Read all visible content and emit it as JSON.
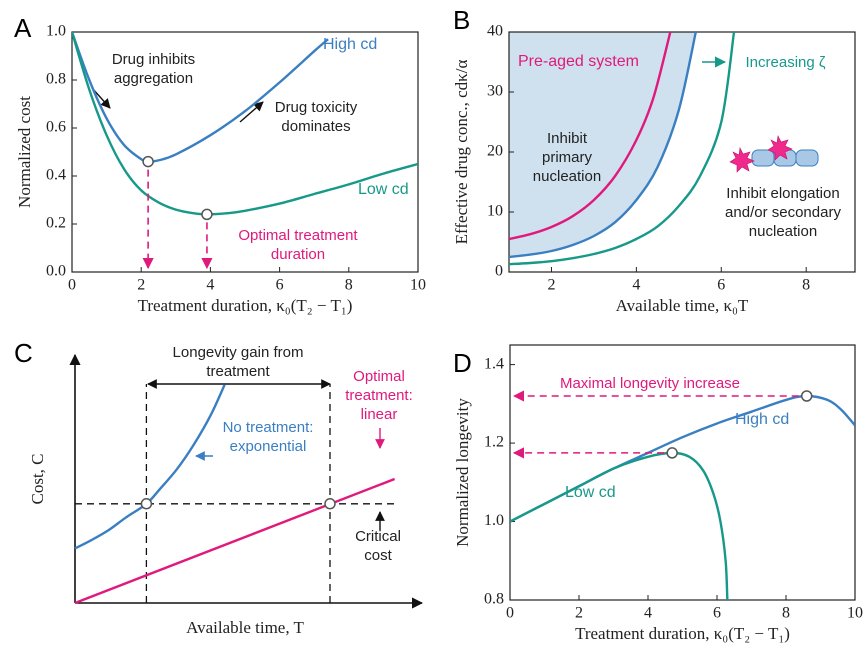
{
  "chart_data": [
    {
      "type": "line",
      "panel": "A",
      "xlabel": "Treatment duration, κ₀(T₂ − T₁)",
      "ylabel": "Normalized cost",
      "xlim": [
        0,
        10
      ],
      "ylim": [
        0,
        1
      ],
      "xticks": [
        0,
        2,
        4,
        6,
        8,
        10
      ],
      "yticks": [
        {
          "value": 0,
          "label": "0.0"
        },
        0.2,
        0.4,
        0.6,
        0.8,
        {
          "value": 1,
          "label": "1.0"
        }
      ],
      "series": [
        {
          "name": "High cd",
          "color": "#3a7fc1",
          "x": [
            0,
            0.5,
            1,
            1.5,
            2,
            2.2,
            2.5,
            3,
            4,
            5,
            6,
            7,
            7.4
          ],
          "values": [
            1,
            0.8,
            0.64,
            0.53,
            0.47,
            0.46,
            0.465,
            0.49,
            0.57,
            0.67,
            0.79,
            0.92,
            0.97
          ]
        },
        {
          "name": "Low cd",
          "color": "#17998a",
          "x": [
            0,
            0.5,
            1,
            1.5,
            2,
            2.5,
            3,
            3.5,
            3.9,
            4.5,
            5,
            6,
            7,
            8,
            9,
            10
          ],
          "values": [
            1,
            0.76,
            0.57,
            0.43,
            0.34,
            0.29,
            0.26,
            0.245,
            0.24,
            0.245,
            0.255,
            0.285,
            0.325,
            0.365,
            0.41,
            0.45
          ]
        }
      ],
      "points": [
        {
          "x": 2.2,
          "y": 0.46
        },
        {
          "x": 3.9,
          "y": 0.24
        }
      ],
      "annotations": [
        "Drug inhibits aggregation",
        "Drug toxicity dominates",
        "Optimal treatment duration"
      ]
    },
    {
      "type": "line",
      "panel": "B",
      "xlabel": "Available time, κ₀T",
      "ylabel": "Effective drug conc., cdκ/α",
      "xlim": [
        1,
        9.15
      ],
      "ylim": [
        0,
        40
      ],
      "xticks": [
        2,
        4,
        6,
        8
      ],
      "yticks": [
        0,
        10,
        20,
        30,
        40
      ],
      "series": [
        {
          "name": "Pre-aged system",
          "color": "#e0197d",
          "x": [
            1,
            1.5,
            2,
            2.5,
            3,
            3.5,
            4,
            4.4,
            4.8
          ],
          "values": [
            5.5,
            6.3,
            7.5,
            9.3,
            12,
            16,
            22,
            29,
            40
          ]
        },
        {
          "color": "#3a7fc1",
          "x": [
            1,
            1.5,
            2,
            2.5,
            3,
            3.5,
            4,
            4.5,
            5,
            5.4
          ],
          "values": [
            2.5,
            2.9,
            3.5,
            4.5,
            6,
            8.3,
            12,
            17.5,
            27,
            40
          ]
        },
        {
          "color": "#17998a",
          "x": [
            1,
            1.5,
            2,
            2.5,
            3,
            3.5,
            4,
            4.5,
            5,
            5.5,
            6,
            6.3
          ],
          "values": [
            1.3,
            1.5,
            1.8,
            2.3,
            3,
            4,
            5.5,
            7.6,
            11,
            16,
            25,
            40
          ]
        }
      ],
      "annotations": [
        "Increasing ζ",
        "Inhibit primary nucleation",
        "Inhibit elongation and/or secondary nucleation"
      ]
    },
    {
      "type": "line",
      "panel": "C",
      "xlabel": "Available time, T",
      "ylabel": "Cost, C",
      "xlim": [
        0,
        10
      ],
      "ylim": [
        0,
        10
      ],
      "series": [
        {
          "name": "No treatment: exponential",
          "color": "#3a7fc1",
          "x": [
            0,
            0.5,
            1,
            1.5,
            2.1,
            2.5,
            3,
            3.5,
            4,
            4.4
          ],
          "values": [
            2.2,
            2.55,
            2.95,
            3.45,
            4,
            4.6,
            5.4,
            6.4,
            7.6,
            8.8
          ]
        },
        {
          "name": "Optimal treatment: linear",
          "color": "#e0197d",
          "x": [
            0,
            9.4
          ],
          "values": [
            0,
            5
          ]
        }
      ],
      "points": [
        {
          "x": 2.1,
          "y": 4
        },
        {
          "x": 7.5,
          "y": 4
        }
      ],
      "annotations": [
        "Longevity gain from treatment",
        "Critical cost"
      ]
    },
    {
      "type": "line",
      "panel": "D",
      "xlabel": "Treatment duration, κ₀(T₂ − T₁)",
      "ylabel": "Normalized longevity",
      "xlim": [
        0,
        10
      ],
      "ylim": [
        0.8,
        1.45
      ],
      "xticks": [
        0,
        2,
        4,
        6,
        8,
        10
      ],
      "yticks": [
        0.8,
        {
          "value": 1,
          "label": "1.0"
        },
        1.2,
        1.4
      ],
      "series": [
        {
          "name": "High cd",
          "color": "#3a7fc1",
          "x": [
            0,
            1,
            2,
            3,
            4,
            5,
            6,
            7,
            8,
            8.6,
            9.2,
            9.6,
            10
          ],
          "values": [
            1,
            1.045,
            1.09,
            1.135,
            1.175,
            1.215,
            1.25,
            1.28,
            1.31,
            1.32,
            1.31,
            1.285,
            1.245
          ]
        },
        {
          "name": "Low cd",
          "color": "#17998a",
          "x": [
            0,
            1,
            2,
            3,
            4,
            4.7,
            5.2,
            5.6,
            5.9,
            6.1,
            6.25,
            6.3
          ],
          "values": [
            1,
            1.045,
            1.09,
            1.135,
            1.165,
            1.175,
            1.165,
            1.13,
            1.07,
            1,
            0.9,
            0.8
          ]
        }
      ],
      "points": [
        {
          "x": 8.6,
          "y": 1.32
        },
        {
          "x": 4.7,
          "y": 1.175
        }
      ],
      "annotations": [
        "Maximal longevity increase"
      ]
    }
  ]
}
